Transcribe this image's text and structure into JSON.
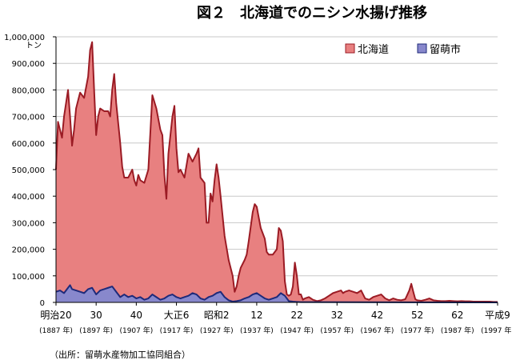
{
  "chart_data": {
    "type": "area",
    "title": "図２　北海道でのニシン水揚げ推移",
    "unit_label": "トン",
    "ylim": [
      0,
      1000000
    ],
    "y_ticks": [
      "0",
      "100,000",
      "200,000",
      "300,000",
      "400,000",
      "500,000",
      "600,000",
      "700,000",
      "800,000",
      "900,000",
      "1,000,000"
    ],
    "x_range": [
      1887,
      1997
    ],
    "x_ticks": [
      {
        "year": 1887,
        "label": "明治20",
        "sub": "(1887 年)"
      },
      {
        "year": 1897,
        "label": "30",
        "sub": "(1897 年)"
      },
      {
        "year": 1907,
        "label": "40",
        "sub": "(1907 年)"
      },
      {
        "year": 1917,
        "label": "大正6",
        "sub": "(1917 年)"
      },
      {
        "year": 1927,
        "label": "昭和2",
        "sub": "(1927 年)"
      },
      {
        "year": 1937,
        "label": "12",
        "sub": "(1937 年)"
      },
      {
        "year": 1947,
        "label": "22",
        "sub": "(1947 年)"
      },
      {
        "year": 1957,
        "label": "32",
        "sub": "(1957 年)"
      },
      {
        "year": 1967,
        "label": "42",
        "sub": "(1967 年)"
      },
      {
        "year": 1977,
        "label": "52",
        "sub": "(1977 年)"
      },
      {
        "year": 1987,
        "label": "62",
        "sub": "(1987 年)"
      },
      {
        "year": 1997,
        "label": "平成9",
        "sub": "(1997 年)"
      }
    ],
    "legend_position": "top-right",
    "series": [
      {
        "name": "北海道",
        "fill": "#e88080",
        "stroke": "#9b1b24",
        "points": [
          [
            1887,
            500000
          ],
          [
            1887.5,
            680000
          ],
          [
            1888,
            650000
          ],
          [
            1888.5,
            620000
          ],
          [
            1889,
            700000
          ],
          [
            1890,
            800000
          ],
          [
            1890.5,
            700000
          ],
          [
            1891,
            590000
          ],
          [
            1891.5,
            650000
          ],
          [
            1892,
            730000
          ],
          [
            1893,
            790000
          ],
          [
            1894,
            770000
          ],
          [
            1895,
            850000
          ],
          [
            1895.5,
            950000
          ],
          [
            1896,
            980000
          ],
          [
            1896.5,
            800000
          ],
          [
            1897,
            630000
          ],
          [
            1897.5,
            700000
          ],
          [
            1898,
            730000
          ],
          [
            1899,
            720000
          ],
          [
            1900,
            720000
          ],
          [
            1900.5,
            700000
          ],
          [
            1901,
            800000
          ],
          [
            1901.5,
            860000
          ],
          [
            1902,
            750000
          ],
          [
            1903,
            600000
          ],
          [
            1903.5,
            510000
          ],
          [
            1904,
            470000
          ],
          [
            1905,
            470000
          ],
          [
            1906,
            500000
          ],
          [
            1906.5,
            460000
          ],
          [
            1907,
            440000
          ],
          [
            1907.5,
            480000
          ],
          [
            1908,
            460000
          ],
          [
            1909,
            450000
          ],
          [
            1910,
            500000
          ],
          [
            1911,
            780000
          ],
          [
            1912,
            730000
          ],
          [
            1913,
            650000
          ],
          [
            1913.5,
            630000
          ],
          [
            1914,
            480000
          ],
          [
            1914.5,
            390000
          ],
          [
            1915,
            560000
          ],
          [
            1916,
            700000
          ],
          [
            1916.5,
            740000
          ],
          [
            1917,
            580000
          ],
          [
            1917.5,
            490000
          ],
          [
            1918,
            500000
          ],
          [
            1919,
            470000
          ],
          [
            1920,
            560000
          ],
          [
            1921,
            530000
          ],
          [
            1922,
            560000
          ],
          [
            1922.5,
            580000
          ],
          [
            1923,
            470000
          ],
          [
            1924,
            450000
          ],
          [
            1924.5,
            300000
          ],
          [
            1925,
            300000
          ],
          [
            1925.5,
            410000
          ],
          [
            1926,
            380000
          ],
          [
            1926.5,
            460000
          ],
          [
            1927,
            520000
          ],
          [
            1927.5,
            470000
          ],
          [
            1928,
            400000
          ],
          [
            1929,
            250000
          ],
          [
            1930,
            160000
          ],
          [
            1931,
            100000
          ],
          [
            1931.5,
            40000
          ],
          [
            1932,
            60000
          ],
          [
            1932.5,
            100000
          ],
          [
            1933,
            130000
          ],
          [
            1934,
            160000
          ],
          [
            1934.5,
            180000
          ],
          [
            1935,
            230000
          ],
          [
            1936,
            340000
          ],
          [
            1936.5,
            370000
          ],
          [
            1937,
            360000
          ],
          [
            1937.5,
            320000
          ],
          [
            1938,
            280000
          ],
          [
            1939,
            240000
          ],
          [
            1939.5,
            190000
          ],
          [
            1940,
            180000
          ],
          [
            1941,
            180000
          ],
          [
            1942,
            200000
          ],
          [
            1942.5,
            280000
          ],
          [
            1943,
            270000
          ],
          [
            1943.5,
            230000
          ],
          [
            1944,
            80000
          ],
          [
            1944.5,
            30000
          ],
          [
            1945,
            25000
          ],
          [
            1945.5,
            30000
          ],
          [
            1946,
            60000
          ],
          [
            1946.5,
            150000
          ],
          [
            1947,
            100000
          ],
          [
            1947.5,
            30000
          ],
          [
            1948,
            30000
          ],
          [
            1948.5,
            10000
          ],
          [
            1949,
            15000
          ],
          [
            1950,
            20000
          ],
          [
            1951,
            10000
          ],
          [
            1952,
            5000
          ],
          [
            1953,
            8000
          ],
          [
            1954,
            15000
          ],
          [
            1955,
            25000
          ],
          [
            1956,
            35000
          ],
          [
            1957,
            40000
          ],
          [
            1958,
            45000
          ],
          [
            1958.5,
            35000
          ],
          [
            1959,
            40000
          ],
          [
            1960,
            45000
          ],
          [
            1961,
            40000
          ],
          [
            1962,
            35000
          ],
          [
            1963,
            45000
          ],
          [
            1963.5,
            30000
          ],
          [
            1964,
            15000
          ],
          [
            1965,
            10000
          ],
          [
            1966,
            20000
          ],
          [
            1967,
            25000
          ],
          [
            1968,
            30000
          ],
          [
            1969,
            15000
          ],
          [
            1970,
            8000
          ],
          [
            1971,
            15000
          ],
          [
            1972,
            10000
          ],
          [
            1973,
            8000
          ],
          [
            1974,
            12000
          ],
          [
            1975,
            45000
          ],
          [
            1975.5,
            70000
          ],
          [
            1976,
            40000
          ],
          [
            1976.5,
            12000
          ],
          [
            1977,
            8000
          ],
          [
            1978,
            6000
          ],
          [
            1979,
            10000
          ],
          [
            1980,
            15000
          ],
          [
            1981,
            8000
          ],
          [
            1982,
            6000
          ],
          [
            1983,
            5000
          ],
          [
            1984,
            5000
          ],
          [
            1985,
            6000
          ],
          [
            1986,
            5000
          ],
          [
            1987,
            4000
          ],
          [
            1988,
            5000
          ],
          [
            1989,
            4000
          ],
          [
            1990,
            4000
          ],
          [
            1991,
            3000
          ],
          [
            1992,
            3000
          ],
          [
            1993,
            3000
          ],
          [
            1994,
            3000
          ],
          [
            1995,
            3000
          ],
          [
            1996,
            2000
          ],
          [
            1997,
            2000
          ]
        ]
      },
      {
        "name": "留萌市",
        "fill": "#8888cc",
        "stroke": "#1e2a7a",
        "points": [
          [
            1887,
            40000
          ],
          [
            1888,
            45000
          ],
          [
            1889,
            35000
          ],
          [
            1890,
            55000
          ],
          [
            1890.5,
            65000
          ],
          [
            1891,
            50000
          ],
          [
            1892,
            45000
          ],
          [
            1893,
            40000
          ],
          [
            1894,
            35000
          ],
          [
            1895,
            50000
          ],
          [
            1896,
            55000
          ],
          [
            1897,
            30000
          ],
          [
            1898,
            45000
          ],
          [
            1899,
            50000
          ],
          [
            1900,
            55000
          ],
          [
            1901,
            60000
          ],
          [
            1902,
            40000
          ],
          [
            1903,
            20000
          ],
          [
            1904,
            30000
          ],
          [
            1905,
            20000
          ],
          [
            1906,
            25000
          ],
          [
            1907,
            15000
          ],
          [
            1908,
            20000
          ],
          [
            1909,
            10000
          ],
          [
            1910,
            15000
          ],
          [
            1911,
            30000
          ],
          [
            1912,
            20000
          ],
          [
            1913,
            10000
          ],
          [
            1914,
            15000
          ],
          [
            1915,
            25000
          ],
          [
            1916,
            30000
          ],
          [
            1917,
            20000
          ],
          [
            1918,
            15000
          ],
          [
            1919,
            20000
          ],
          [
            1920,
            25000
          ],
          [
            1921,
            35000
          ],
          [
            1922,
            30000
          ],
          [
            1923,
            15000
          ],
          [
            1924,
            10000
          ],
          [
            1925,
            20000
          ],
          [
            1926,
            25000
          ],
          [
            1927,
            35000
          ],
          [
            1928,
            40000
          ],
          [
            1929,
            20000
          ],
          [
            1930,
            8000
          ],
          [
            1931,
            3000
          ],
          [
            1932,
            5000
          ],
          [
            1933,
            8000
          ],
          [
            1934,
            15000
          ],
          [
            1935,
            20000
          ],
          [
            1936,
            30000
          ],
          [
            1937,
            35000
          ],
          [
            1938,
            25000
          ],
          [
            1939,
            15000
          ],
          [
            1940,
            10000
          ],
          [
            1941,
            15000
          ],
          [
            1942,
            20000
          ],
          [
            1943,
            35000
          ],
          [
            1944,
            25000
          ],
          [
            1945,
            5000
          ],
          [
            1946,
            3000
          ],
          [
            1947,
            2000
          ],
          [
            1948,
            1000
          ],
          [
            1950,
            1000
          ],
          [
            1997,
            0
          ]
        ]
      }
    ]
  },
  "source_note": "（出所：留萌水産物加工協同組合）"
}
